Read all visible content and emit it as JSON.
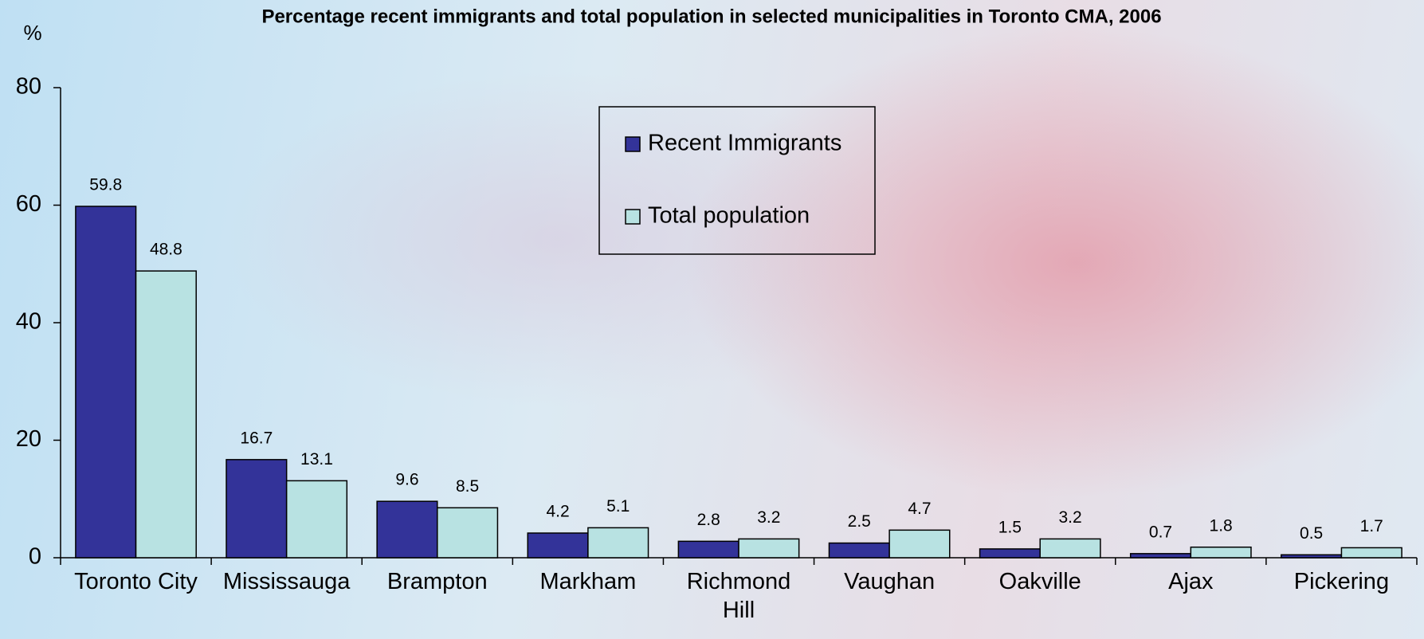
{
  "chart_data": {
    "type": "bar",
    "title": "Percentage recent immigrants and total population in selected municipalities in Toronto CMA, 2006",
    "y_label": "%",
    "categories": [
      "Toronto City",
      "Mississauga",
      "Brampton",
      "Markham",
      "Richmond Hill",
      "Vaughan",
      "Oakville",
      "Ajax",
      "Pickering"
    ],
    "series": [
      {
        "name": "Recent Immigrants",
        "color": "#333399",
        "values": [
          59.8,
          16.7,
          9.6,
          4.2,
          2.8,
          2.5,
          1.5,
          0.7,
          0.5
        ]
      },
      {
        "name": "Total population",
        "color": "#b8e2e2",
        "values": [
          48.8,
          13.1,
          8.5,
          5.1,
          3.2,
          4.7,
          3.2,
          1.8,
          1.7
        ]
      }
    ],
    "ylim": [
      0,
      80
    ],
    "yticks": [
      0,
      20,
      40,
      60,
      80
    ],
    "grid": false,
    "legend": "top-center"
  }
}
